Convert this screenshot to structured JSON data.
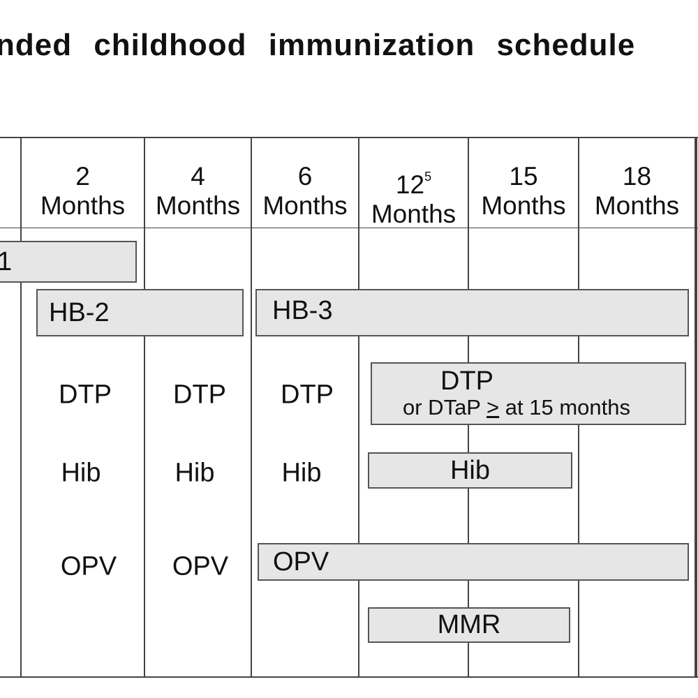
{
  "title": "nded childhood immunization schedule",
  "columns": [
    {
      "age": "2",
      "unit": "Months"
    },
    {
      "age": "4",
      "unit": "Months"
    },
    {
      "age": "6",
      "unit": "Months"
    },
    {
      "age": "12",
      "note": "5",
      "unit": "Months"
    },
    {
      "age": "15",
      "unit": "Months"
    },
    {
      "age": "18",
      "unit": "Months"
    }
  ],
  "rows": {
    "hb": {
      "bar1": "1",
      "bar2": "HB-2",
      "bar3": "HB-3"
    },
    "dtp": {
      "cells": [
        "DTP",
        "DTP",
        "DTP"
      ],
      "bar": "DTP",
      "bar_note": [
        "or DTaP",
        ">",
        "at 15 months"
      ]
    },
    "hib": {
      "cells": [
        "Hib",
        "Hib",
        "Hib"
      ],
      "bar": "Hib"
    },
    "opv": {
      "cells": [
        "OPV",
        "OPV"
      ],
      "bar": "OPV"
    },
    "mmr": {
      "bar": "MMR"
    }
  }
}
